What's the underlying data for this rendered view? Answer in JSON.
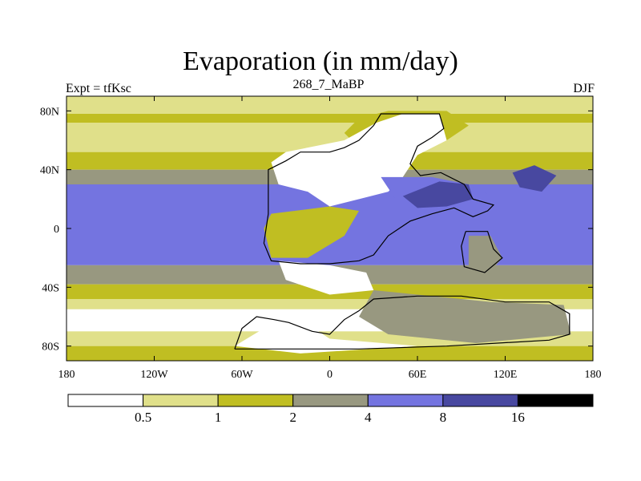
{
  "chart_data": {
    "type": "heatmap",
    "title": "Evaporation (in mm/day)",
    "left_string": "Expt = tfKsc",
    "center_string": "268_7_MaBP",
    "right_string": "DJF",
    "xlim": [
      -180,
      180
    ],
    "ylim": [
      -90,
      90
    ],
    "x_ticks": [
      {
        "value": -180,
        "label": "180"
      },
      {
        "value": -120,
        "label": "120W"
      },
      {
        "value": -60,
        "label": "60W"
      },
      {
        "value": 0,
        "label": "0"
      },
      {
        "value": 60,
        "label": "60E"
      },
      {
        "value": 120,
        "label": "120E"
      },
      {
        "value": 180,
        "label": "180"
      }
    ],
    "y_ticks": [
      {
        "value": 80,
        "label": "80N"
      },
      {
        "value": 40,
        "label": "40N"
      },
      {
        "value": 0,
        "label": "0"
      },
      {
        "value": -40,
        "label": "40S"
      },
      {
        "value": -80,
        "label": "80S"
      }
    ],
    "levels": [
      {
        "label": "0.5",
        "color": "#ffffff"
      },
      {
        "label": "1",
        "color": "#e0e08a"
      },
      {
        "label": "2",
        "color": "#c0be22"
      },
      {
        "label": "4",
        "color": "#989880"
      },
      {
        "label": "8",
        "color": "#7474e0"
      },
      {
        "label": "16",
        "color": "#4848a0"
      },
      {
        "label": "",
        "color": "#000000"
      }
    ],
    "zonal_bands": [
      {
        "from": 90,
        "to": 78,
        "level": 1
      },
      {
        "from": 78,
        "to": 72,
        "level": 2
      },
      {
        "from": 72,
        "to": 52,
        "level": 1
      },
      {
        "from": 52,
        "to": 40,
        "level": 2
      },
      {
        "from": 40,
        "to": 30,
        "level": 3
      },
      {
        "from": 30,
        "to": -25,
        "level": 4
      },
      {
        "from": -25,
        "to": -38,
        "level": 3
      },
      {
        "from": -38,
        "to": -48,
        "level": 2
      },
      {
        "from": -48,
        "to": -55,
        "level": 1
      },
      {
        "from": -55,
        "to": -70,
        "level": 0
      },
      {
        "from": -70,
        "to": -80,
        "level": 1
      },
      {
        "from": -80,
        "to": -90,
        "level": 2
      }
    ],
    "regions": [
      {
        "name": "arctic-coast-land",
        "level": 2,
        "points": [
          [
            20,
            75
          ],
          [
            40,
            80
          ],
          [
            80,
            80
          ],
          [
            95,
            70
          ],
          [
            80,
            60
          ],
          [
            50,
            58
          ],
          [
            20,
            55
          ],
          [
            10,
            65
          ]
        ]
      },
      {
        "name": "north-continent-land",
        "level": 0,
        "points": [
          [
            -40,
            45
          ],
          [
            -30,
            52
          ],
          [
            10,
            60
          ],
          [
            32,
            72
          ],
          [
            50,
            78
          ],
          [
            75,
            78
          ],
          [
            80,
            60
          ],
          [
            60,
            50
          ],
          [
            50,
            35
          ],
          [
            40,
            25
          ],
          [
            20,
            20
          ],
          [
            0,
            15
          ],
          [
            -15,
            25
          ],
          [
            -35,
            30
          ]
        ]
      },
      {
        "name": "tethys-sea",
        "level": 4,
        "points": [
          [
            35,
            35
          ],
          [
            70,
            35
          ],
          [
            95,
            30
          ],
          [
            115,
            20
          ],
          [
            110,
            10
          ],
          [
            85,
            15
          ],
          [
            60,
            12
          ],
          [
            45,
            20
          ]
        ]
      },
      {
        "name": "tethys-sea-core",
        "level": 5,
        "points": [
          [
            50,
            22
          ],
          [
            75,
            32
          ],
          [
            95,
            30
          ],
          [
            98,
            20
          ],
          [
            80,
            15
          ],
          [
            60,
            14
          ]
        ]
      },
      {
        "name": "east-pacific-high",
        "level": 5,
        "points": [
          [
            125,
            38
          ],
          [
            140,
            43
          ],
          [
            155,
            36
          ],
          [
            145,
            25
          ],
          [
            130,
            28
          ]
        ]
      },
      {
        "name": "equatorial-land",
        "level": 2,
        "points": [
          [
            -40,
            10
          ],
          [
            0,
            15
          ],
          [
            20,
            12
          ],
          [
            10,
            -5
          ],
          [
            -15,
            -20
          ],
          [
            -40,
            -20
          ],
          [
            -45,
            0
          ]
        ]
      },
      {
        "name": "southern-land-interior",
        "level": 0,
        "points": [
          [
            -35,
            -22
          ],
          [
            0,
            -25
          ],
          [
            25,
            -30
          ],
          [
            30,
            -42
          ],
          [
            0,
            -45
          ],
          [
            -30,
            -35
          ]
        ]
      },
      {
        "name": "southern-land-rim",
        "level": 3,
        "points": [
          [
            30,
            -42
          ],
          [
            60,
            -45
          ],
          [
            110,
            -50
          ],
          [
            160,
            -52
          ],
          [
            165,
            -72
          ],
          [
            100,
            -78
          ],
          [
            40,
            -72
          ],
          [
            20,
            -60
          ]
        ]
      },
      {
        "name": "antarctic-land",
        "level": 0,
        "points": [
          [
            -65,
            -80
          ],
          [
            -40,
            -65
          ],
          [
            -20,
            -62
          ],
          [
            0,
            -75
          ],
          [
            60,
            -80
          ],
          [
            -20,
            -85
          ]
        ]
      },
      {
        "name": "east-islands",
        "level": 3,
        "points": [
          [
            95,
            -5
          ],
          [
            110,
            -5
          ],
          [
            118,
            -20
          ],
          [
            105,
            -35
          ],
          [
            95,
            -25
          ]
        ]
      }
    ],
    "coastlines": [
      [
        [
          -42,
          18
        ],
        [
          -42,
          40
        ],
        [
          -30,
          46
        ],
        [
          -20,
          52
        ],
        [
          0,
          52
        ],
        [
          10,
          55
        ],
        [
          20,
          60
        ],
        [
          30,
          70
        ],
        [
          35,
          78
        ],
        [
          50,
          78
        ],
        [
          75,
          78
        ],
        [
          78,
          68
        ],
        [
          70,
          62
        ],
        [
          60,
          56
        ],
        [
          55,
          44
        ],
        [
          62,
          36
        ],
        [
          76,
          38
        ],
        [
          92,
          30
        ],
        [
          98,
          20
        ],
        [
          112,
          16
        ],
        [
          108,
          12
        ],
        [
          98,
          8
        ],
        [
          85,
          14
        ],
        [
          70,
          10
        ],
        [
          55,
          5
        ],
        [
          40,
          -5
        ],
        [
          30,
          -18
        ],
        [
          20,
          -22
        ],
        [
          0,
          -24
        ],
        [
          -20,
          -24
        ],
        [
          -40,
          -22
        ],
        [
          -45,
          -10
        ],
        [
          -42,
          10
        ],
        [
          -42,
          18
        ]
      ],
      [
        [
          -65,
          -82
        ],
        [
          -60,
          -68
        ],
        [
          -50,
          -60
        ],
        [
          -38,
          -62
        ],
        [
          -28,
          -64
        ],
        [
          -12,
          -70
        ],
        [
          0,
          -72
        ],
        [
          10,
          -62
        ],
        [
          20,
          -56
        ],
        [
          30,
          -48
        ],
        [
          60,
          -46
        ],
        [
          90,
          -46
        ],
        [
          120,
          -50
        ],
        [
          150,
          -50
        ],
        [
          164,
          -58
        ],
        [
          164,
          -72
        ],
        [
          150,
          -76
        ],
        [
          80,
          -80
        ],
        [
          20,
          -82
        ],
        [
          -40,
          -82
        ],
        [
          -65,
          -82
        ]
      ],
      [
        [
          93,
          -2
        ],
        [
          108,
          -2
        ],
        [
          112,
          -14
        ],
        [
          118,
          -20
        ],
        [
          106,
          -30
        ],
        [
          92,
          -26
        ],
        [
          90,
          -12
        ],
        [
          93,
          -2
        ]
      ]
    ]
  }
}
